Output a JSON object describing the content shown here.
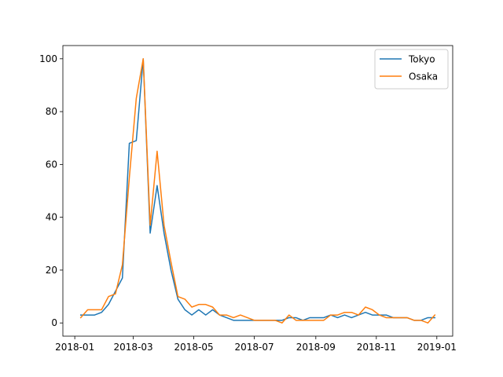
{
  "chart_data": {
    "type": "line",
    "title": "",
    "xlabel": "",
    "ylabel": "",
    "x": [
      "2018-01-07",
      "2018-01-14",
      "2018-01-21",
      "2018-01-28",
      "2018-02-04",
      "2018-02-11",
      "2018-02-18",
      "2018-02-25",
      "2018-03-04",
      "2018-03-11",
      "2018-03-18",
      "2018-03-25",
      "2018-04-01",
      "2018-04-08",
      "2018-04-15",
      "2018-04-22",
      "2018-04-29",
      "2018-05-06",
      "2018-05-13",
      "2018-05-20",
      "2018-05-27",
      "2018-06-03",
      "2018-06-10",
      "2018-06-17",
      "2018-06-24",
      "2018-07-01",
      "2018-07-08",
      "2018-07-15",
      "2018-07-22",
      "2018-07-29",
      "2018-08-05",
      "2018-08-12",
      "2018-08-19",
      "2018-08-26",
      "2018-09-02",
      "2018-09-09",
      "2018-09-16",
      "2018-09-23",
      "2018-09-30",
      "2018-10-07",
      "2018-10-14",
      "2018-10-21",
      "2018-10-28",
      "2018-11-04",
      "2018-11-11",
      "2018-11-18",
      "2018-11-25",
      "2018-12-02",
      "2018-12-09",
      "2018-12-16",
      "2018-12-23",
      "2018-12-30"
    ],
    "series": [
      {
        "name": "Tokyo",
        "color": "#1f77b4",
        "values": [
          3,
          3,
          3,
          4,
          7,
          12,
          17,
          68,
          69,
          100,
          34,
          52,
          34,
          20,
          9,
          5,
          3,
          5,
          3,
          5,
          3,
          2,
          1,
          1,
          1,
          1,
          1,
          1,
          1,
          1,
          2,
          2,
          1,
          2,
          2,
          2,
          3,
          2,
          3,
          2,
          3,
          4,
          3,
          3,
          3,
          2,
          2,
          2,
          1,
          1,
          2,
          2
        ]
      },
      {
        "name": "Osaka",
        "color": "#ff7f0e",
        "values": [
          2,
          5,
          5,
          5,
          10,
          11,
          22,
          55,
          85,
          100,
          37,
          65,
          37,
          23,
          10,
          9,
          6,
          7,
          7,
          6,
          3,
          3,
          2,
          3,
          2,
          1,
          1,
          1,
          1,
          0,
          3,
          1,
          1,
          1,
          1,
          1,
          3,
          3,
          4,
          4,
          3,
          6,
          5,
          3,
          2,
          2,
          2,
          2,
          1,
          1,
          0,
          3
        ]
      }
    ],
    "xlim": [
      "2017-12-20",
      "2019-01-17"
    ],
    "ylim": [
      -5,
      105
    ],
    "xticks": [
      {
        "date": "2018-01-01",
        "label": "2018-01"
      },
      {
        "date": "2018-03-01",
        "label": "2018-03"
      },
      {
        "date": "2018-05-01",
        "label": "2018-05"
      },
      {
        "date": "2018-07-01",
        "label": "2018-07"
      },
      {
        "date": "2018-09-01",
        "label": "2018-09"
      },
      {
        "date": "2018-11-01",
        "label": "2018-11"
      },
      {
        "date": "2019-01-01",
        "label": "2019-01"
      }
    ],
    "yticks": [
      0,
      20,
      40,
      60,
      80,
      100
    ],
    "grid": false,
    "legend_position": "top-right"
  }
}
